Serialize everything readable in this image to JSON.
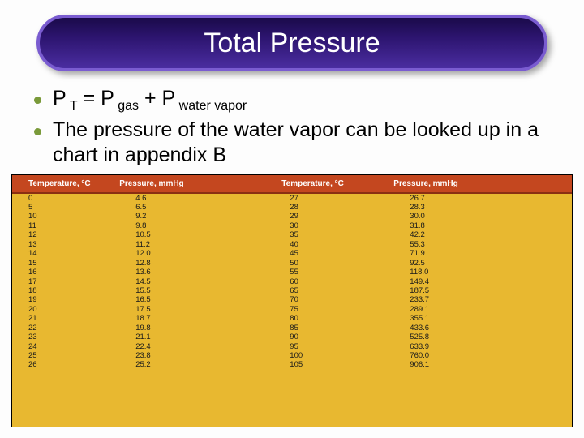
{
  "title": "Total Pressure",
  "bullets": {
    "b1": {
      "p": "P",
      "t": " T",
      "eq": " = P",
      "gas": " gas",
      "plus": " + P",
      "wv": " water vapor"
    },
    "b2": "The pressure of the water vapor can be looked up in a chart in appendix B"
  },
  "table": {
    "headers": [
      "Temperature, °C",
      "Pressure, mmHg",
      "Temperature, °C",
      "Pressure, mmHg"
    ],
    "rows": [
      [
        "0",
        "4.6",
        "27",
        "26.7"
      ],
      [
        "5",
        "6.5",
        "28",
        "28.3"
      ],
      [
        "10",
        "9.2",
        "29",
        "30.0"
      ],
      [
        "11",
        "9.8",
        "30",
        "31.8"
      ],
      [
        "12",
        "10.5",
        "35",
        "42.2"
      ],
      [
        "13",
        "11.2",
        "40",
        "55.3"
      ],
      [
        "14",
        "12.0",
        "45",
        "71.9"
      ],
      [
        "15",
        "12.8",
        "50",
        "92.5"
      ],
      [
        "16",
        "13.6",
        "55",
        "118.0"
      ],
      [
        "17",
        "14.5",
        "60",
        "149.4"
      ],
      [
        "18",
        "15.5",
        "65",
        "187.5"
      ],
      [
        "19",
        "16.5",
        "70",
        "233.7"
      ],
      [
        "20",
        "17.5",
        "75",
        "289.1"
      ],
      [
        "21",
        "18.7",
        "80",
        "355.1"
      ],
      [
        "22",
        "19.8",
        "85",
        "433.6"
      ],
      [
        "23",
        "21.1",
        "90",
        "525.8"
      ],
      [
        "24",
        "22.4",
        "95",
        "633.9"
      ],
      [
        "25",
        "23.8",
        "100",
        "760.0"
      ],
      [
        "26",
        "25.2",
        "105",
        "906.1"
      ]
    ],
    "header_bg": "#c4471f",
    "header_color": "#ffffff",
    "body_bg": "#e8b830",
    "text_color": "#1a1a1a"
  },
  "colors": {
    "title_gradient_top": "#1a0a4a",
    "title_gradient_bottom": "#4a2da0",
    "title_border": "#7a5cd0",
    "bullet_dot": "#7a9a3a"
  }
}
